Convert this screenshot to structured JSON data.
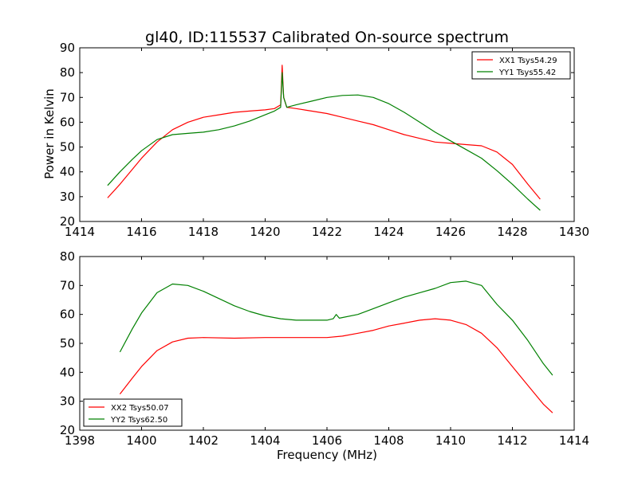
{
  "title": "gl40, ID:115537 Calibrated On-source spectrum",
  "ylabel": "Power in Kelvin",
  "xlabel": "Frequency (MHz)",
  "colors": {
    "red": "#ff0000",
    "green": "#008000"
  },
  "chart_data": [
    {
      "type": "line",
      "xlim": [
        1414,
        1430
      ],
      "ylim": [
        20,
        90
      ],
      "xticks": [
        1414,
        1416,
        1418,
        1420,
        1422,
        1424,
        1426,
        1428,
        1430
      ],
      "yticks": [
        20,
        30,
        40,
        50,
        60,
        70,
        80,
        90
      ],
      "legend": {
        "placement": "top-right"
      },
      "series": [
        {
          "name": "XX1 Tsys54.29",
          "color": "#ff0000",
          "x": [
            1414.9,
            1415.3,
            1415.7,
            1416.0,
            1416.5,
            1417.0,
            1417.5,
            1418.0,
            1418.5,
            1419.0,
            1419.5,
            1420.0,
            1420.3,
            1420.5,
            1420.55,
            1420.6,
            1420.7,
            1421.0,
            1421.5,
            1422.0,
            1422.5,
            1423.0,
            1423.5,
            1424.0,
            1424.5,
            1425.0,
            1425.5,
            1426.0,
            1426.5,
            1427.0,
            1427.5,
            1428.0,
            1428.5,
            1428.9
          ],
          "y": [
            29.5,
            35,
            41,
            45.5,
            52,
            57,
            60,
            62,
            63,
            64,
            64.5,
            65,
            65.5,
            67,
            83,
            70,
            66,
            65.5,
            64.5,
            63.5,
            62,
            60.5,
            59,
            57,
            55,
            53.5,
            52,
            51.5,
            51,
            50.5,
            48,
            43,
            35,
            29
          ]
        },
        {
          "name": "YY1 Tsys55.42",
          "color": "#008000",
          "x": [
            1414.9,
            1415.3,
            1415.7,
            1416.0,
            1416.5,
            1417.0,
            1417.5,
            1418.0,
            1418.5,
            1419.0,
            1419.5,
            1420.0,
            1420.3,
            1420.5,
            1420.55,
            1420.6,
            1420.7,
            1421.0,
            1421.5,
            1422.0,
            1422.5,
            1423.0,
            1423.5,
            1424.0,
            1424.5,
            1425.0,
            1425.5,
            1426.0,
            1426.5,
            1427.0,
            1427.5,
            1428.0,
            1428.5,
            1428.9
          ],
          "y": [
            34.5,
            40,
            45,
            48.5,
            53,
            55,
            55.5,
            56,
            57,
            58.5,
            60.5,
            63,
            64.5,
            66,
            80,
            70,
            66,
            67,
            68.5,
            70,
            70.8,
            71,
            70,
            67.5,
            64,
            60,
            56,
            52.5,
            49,
            45.5,
            40.5,
            35,
            29,
            24.5
          ]
        }
      ]
    },
    {
      "type": "line",
      "xlim": [
        1398,
        1414
      ],
      "ylim": [
        20,
        80
      ],
      "xticks": [
        1398,
        1400,
        1402,
        1404,
        1406,
        1408,
        1410,
        1412,
        1414
      ],
      "yticks": [
        20,
        30,
        40,
        50,
        60,
        70,
        80
      ],
      "legend": {
        "placement": "bottom-left"
      },
      "series": [
        {
          "name": "XX2 Tsys50.07",
          "color": "#ff0000",
          "x": [
            1399.3,
            1399.7,
            1400.0,
            1400.5,
            1401.0,
            1401.5,
            1402.0,
            1403.0,
            1404.0,
            1405.0,
            1406.0,
            1406.5,
            1407.0,
            1407.5,
            1408.0,
            1408.5,
            1409.0,
            1409.5,
            1410.0,
            1410.5,
            1411.0,
            1411.5,
            1412.0,
            1412.5,
            1413.0,
            1413.3
          ],
          "y": [
            32.5,
            38,
            42,
            47.5,
            50.5,
            51.8,
            52,
            51.8,
            52,
            52,
            52,
            52.5,
            53.5,
            54.5,
            56,
            57,
            58,
            58.5,
            58,
            56.5,
            53.5,
            48.5,
            42,
            35.5,
            29,
            26
          ]
        },
        {
          "name": "YY2 Tsys62.50",
          "color": "#008000",
          "x": [
            1399.3,
            1399.7,
            1400.0,
            1400.5,
            1401.0,
            1401.5,
            1402.0,
            1402.5,
            1403.0,
            1403.5,
            1404.0,
            1404.5,
            1405.0,
            1406.0,
            1406.2,
            1406.3,
            1406.4,
            1407.0,
            1407.5,
            1408.0,
            1408.5,
            1409.0,
            1409.5,
            1410.0,
            1410.5,
            1411.0,
            1411.5,
            1412.0,
            1412.5,
            1413.0,
            1413.3
          ],
          "y": [
            47,
            55,
            60.5,
            67.5,
            70.5,
            70,
            68,
            65.5,
            63,
            61,
            59.5,
            58.5,
            58,
            58,
            58.5,
            60,
            58.7,
            60,
            62,
            64,
            66,
            67.5,
            69,
            71,
            71.5,
            70,
            63.5,
            58,
            51,
            43,
            39
          ]
        }
      ]
    }
  ]
}
